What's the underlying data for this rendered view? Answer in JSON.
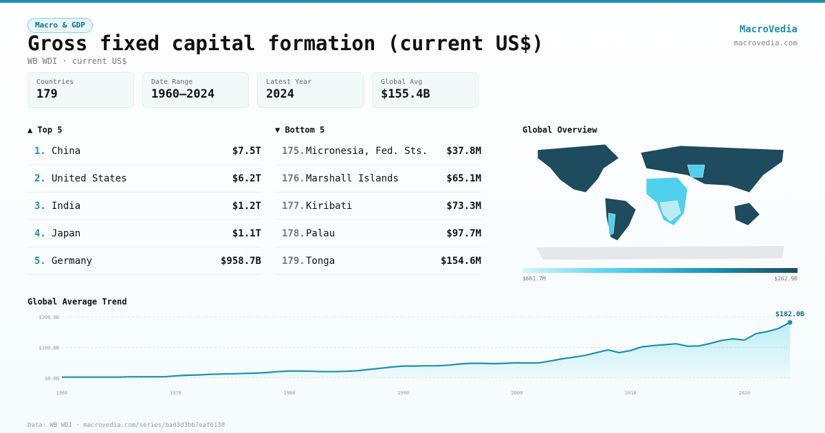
{
  "header": {
    "tag": "Macro & GDP",
    "title": "Gross fixed capital formation (current US$)",
    "subtitle": "WB WDI · current US$",
    "brand": "MacroVedia",
    "site": "macrovedia.com"
  },
  "stats": [
    {
      "label": "Countries",
      "value": "179"
    },
    {
      "label": "Date Range",
      "value": "1960–2024"
    },
    {
      "label": "Latest Year",
      "value": "2024"
    },
    {
      "label": "Global Avg",
      "value": "$155.4B"
    }
  ],
  "top": {
    "title": "▲ Top 5",
    "rows": [
      {
        "rank": "1.",
        "name": "China",
        "value": "$7.5T"
      },
      {
        "rank": "2.",
        "name": "United States",
        "value": "$6.2T"
      },
      {
        "rank": "3.",
        "name": "India",
        "value": "$1.2T"
      },
      {
        "rank": "4.",
        "name": "Japan",
        "value": "$1.1T"
      },
      {
        "rank": "5.",
        "name": "Germany",
        "value": "$958.7B"
      }
    ]
  },
  "bottom": {
    "title": "▼ Bottom 5",
    "rows": [
      {
        "rank": "175.",
        "name": "Micronesia, Fed. Sts.",
        "value": "$37.8M"
      },
      {
        "rank": "176.",
        "name": "Marshall Islands",
        "value": "$65.1M"
      },
      {
        "rank": "177.",
        "name": "Kiribati",
        "value": "$73.3M"
      },
      {
        "rank": "178.",
        "name": "Palau",
        "value": "$97.7M"
      },
      {
        "rank": "179.",
        "name": "Tonga",
        "value": "$154.6M"
      }
    ]
  },
  "map": {
    "title": "Global Overview",
    "scale_min": "$661.7M",
    "scale_max": "$262.9B"
  },
  "chart_data": {
    "type": "line",
    "title": "Global Average Trend",
    "color": "#1a8fb0",
    "x": [
      1960,
      1961,
      1962,
      1963,
      1964,
      1965,
      1966,
      1967,
      1968,
      1969,
      1970,
      1971,
      1972,
      1973,
      1974,
      1975,
      1976,
      1977,
      1978,
      1979,
      1980,
      1981,
      1982,
      1983,
      1984,
      1985,
      1986,
      1987,
      1988,
      1989,
      1990,
      1991,
      1992,
      1993,
      1994,
      1995,
      1996,
      1997,
      1998,
      1999,
      2000,
      2001,
      2002,
      2003,
      2004,
      2005,
      2006,
      2007,
      2008,
      2009,
      2010,
      2011,
      2012,
      2013,
      2014,
      2015,
      2016,
      2017,
      2018,
      2019,
      2020,
      2021,
      2022,
      2023,
      2024
    ],
    "values": [
      3,
      3,
      3,
      3,
      3,
      3,
      4,
      4,
      4,
      4,
      7,
      9,
      10,
      12,
      13,
      14,
      15,
      16,
      18,
      21,
      23,
      23,
      22,
      21,
      21,
      22,
      24,
      28,
      32,
      36,
      39,
      39,
      40,
      40,
      42,
      46,
      48,
      48,
      47,
      48,
      50,
      49,
      50,
      56,
      63,
      68,
      74,
      83,
      92,
      83,
      90,
      102,
      106,
      109,
      112,
      104,
      105,
      113,
      123,
      128,
      124,
      145,
      152,
      162,
      182
    ],
    "annotation": "$182.0B",
    "xlim": [
      1960,
      2024
    ],
    "xticks": [
      1960,
      1970,
      1980,
      1990,
      2000,
      2010,
      2020
    ],
    "ylim": [
      0,
      200
    ],
    "yticks": [
      {
        "value": 0,
        "label": "$0.0B"
      },
      {
        "value": 100,
        "label": "$100.0B"
      },
      {
        "value": 200,
        "label": "$200.0B"
      }
    ],
    "grid": true
  },
  "footer": "Data: WB WDI · macrovedia.com/series/ba03d3bb7eaf6138"
}
